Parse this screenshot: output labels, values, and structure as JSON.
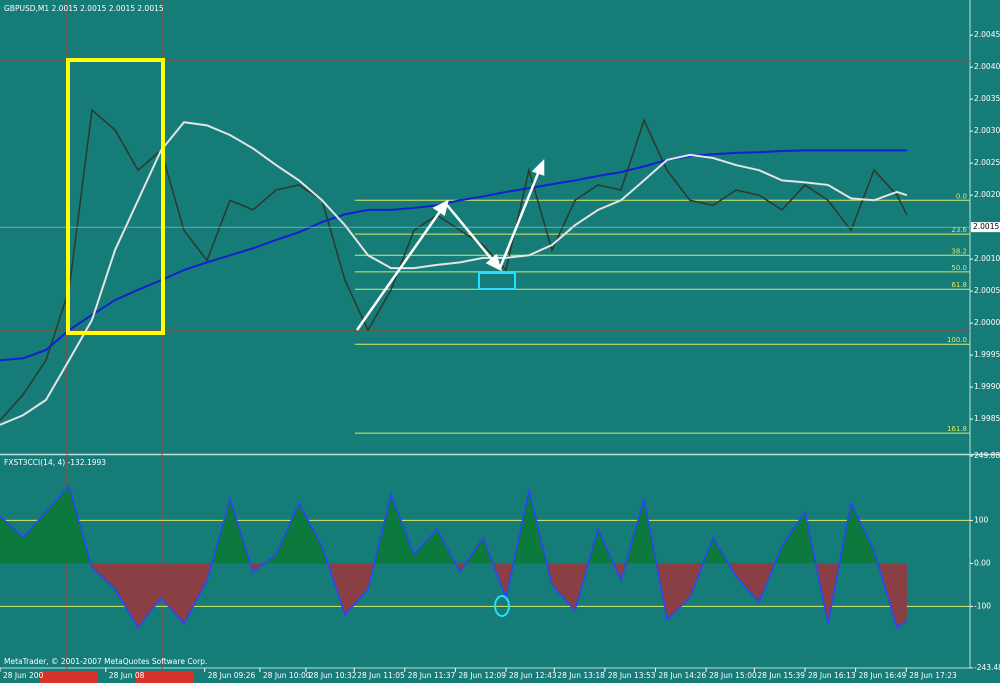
{
  "chart_data": [
    {
      "type": "line",
      "title": "GBPUSD,M1  2.0015 2.0015 2.0015 2.0015",
      "x": [
        0,
        1,
        2,
        3,
        4,
        5,
        6,
        7,
        8,
        9,
        10,
        11,
        12,
        13,
        14,
        15,
        16,
        17,
        18,
        19,
        20,
        21,
        22,
        23,
        24,
        25,
        26,
        27,
        28,
        29,
        30,
        31,
        32,
        33,
        34,
        35,
        36,
        37,
        38,
        39,
        39.43
      ],
      "xlim": [
        0,
        42.174
      ],
      "ylim": [
        1.99797,
        2.00505
      ],
      "yticks": [
        2.0045,
        {
          "value": 2.004,
          "label": "2.0040"
        },
        2.0035,
        {
          "value": 2.003,
          "label": "2.0030"
        },
        2.0025,
        {
          "value": 2.002,
          "label": "2.0020"
        },
        {
          "value": 2.001,
          "label": "2.0010"
        },
        2.0005,
        {
          "value": 2,
          "label": "2.0000"
        },
        1.9995,
        {
          "value": 1.999,
          "label": "1.9990"
        },
        1.9985
      ],
      "current_price": 2.0015,
      "fib_color": "#d8e86a",
      "fib_start": 15.43,
      "fib_levels": [
        {
          "label": "0.0",
          "value": 2.00192
        },
        {
          "label": "23.6",
          "value": 2.00139
        },
        {
          "label": "38.2",
          "value": 2.00106
        },
        {
          "label": "50.0",
          "value": 2.0008
        },
        {
          "label": "61.8",
          "value": 2.00053
        },
        {
          "label": "100.0",
          "value": 1.99967
        },
        {
          "label": "161.8",
          "value": 1.99828
        }
      ],
      "series": [
        {
          "color": "#2a3a2a",
          "values": [
            1.99848,
            1.99888,
            1.99942,
            2.00052,
            2.00333,
            2.00302,
            2.00239,
            2.0027,
            2.00145,
            2.00098,
            2.00192,
            2.00177,
            2.00208,
            2.00216,
            2.00192,
            2.00067,
            1.99989,
            2.00052,
            2.00145,
            2.00169,
            2.00145,
            2.00122,
            2.00083,
            2.00239,
            2.00114,
            2.00192,
            2.00216,
            2.00208,
            2.00317,
            2.00239,
            2.00192,
            2.00184,
            2.00208,
            2.002,
            2.00177,
            2.00216,
            2.00192,
            2.00145,
            2.00239,
            2.002,
            2.00169
          ]
        },
        {
          "color": "#1020d0",
          "values": [
            1.99942,
            1.99945,
            1.99958,
            1.99989,
            2.00013,
            2.00036,
            2.00052,
            2.00067,
            2.00083,
            2.00095,
            2.00106,
            2.00117,
            2.0013,
            2.00142,
            2.00158,
            2.0017,
            2.00177,
            2.00177,
            2.0018,
            2.00184,
            2.00192,
            2.00198,
            2.00205,
            2.00211,
            2.00217,
            2.00223,
            2.0023,
            2.00236,
            2.00245,
            2.00255,
            2.00261,
            2.00264,
            2.00266,
            2.00267,
            2.00269,
            2.0027,
            2.0027,
            2.0027,
            2.0027,
            2.0027,
            2.0027
          ]
        },
        {
          "color": "#e4e4e4",
          "values": [
            1.99841,
            1.99856,
            1.9988,
            1.99942,
            2.00005,
            2.00114,
            2.00192,
            2.0027,
            2.00314,
            2.00309,
            2.00294,
            2.00273,
            2.00247,
            2.00223,
            2.00192,
            2.00153,
            2.00106,
            2.00086,
            2.00086,
            2.00091,
            2.00095,
            2.00102,
            2.00102,
            2.00106,
            2.00122,
            2.00153,
            2.00177,
            2.00192,
            2.00223,
            2.00255,
            2.00263,
            2.00258,
            2.00247,
            2.00239,
            2.00223,
            2.0022,
            2.00216,
            2.00195,
            2.00192,
            2.00205,
            2.002
          ]
        }
      ]
    },
    {
      "type": "area",
      "title": "FXST3CCI(14, 4) -132.1993",
      "x": [
        0,
        1,
        2,
        3,
        4,
        5,
        6,
        7,
        8,
        9,
        10,
        11,
        12,
        13,
        14,
        15,
        16,
        17,
        18,
        19,
        20,
        21,
        22,
        23,
        24,
        25,
        26,
        27,
        28,
        29,
        30,
        31,
        32,
        33,
        34,
        35,
        36,
        37,
        38,
        39,
        39.43
      ],
      "xlim": [
        0,
        42.174
      ],
      "xticks": [
        {
          "value": 0,
          "label": "28 Jun 200"
        },
        {
          "value": 4.6,
          "label": "28 Jun 08"
        },
        {
          "value": 8.9,
          "label": "28 Jun 09:26"
        },
        {
          "value": 11.3,
          "label": "28 Jun 10:00"
        },
        {
          "value": 13.3,
          "label": "28 Jun 10:32"
        },
        {
          "value": 15.4,
          "label": "28 Jun 11:05"
        },
        {
          "value": 17.6,
          "label": "28 Jun 11:37"
        },
        {
          "value": 19.8,
          "label": "28 Jun 12:09"
        },
        {
          "value": 22,
          "label": "28 Jun 12:43"
        },
        {
          "value": 24.1,
          "label": "28 Jun 13:18"
        },
        {
          "value": 26.3,
          "label": "28 Jun 13:53"
        },
        {
          "value": 28.5,
          "label": "28 Jun 14:26"
        },
        {
          "value": 30.7,
          "label": "28 Jun 15:00"
        },
        {
          "value": 32.8,
          "label": "28 Jun 15:39"
        },
        {
          "value": 35,
          "label": "28 Jun 16:13"
        },
        {
          "value": 37.2,
          "label": "28 Jun 16:49"
        },
        {
          "value": 39.4,
          "label": "28 Jun 17:23"
        }
      ],
      "ylim": [
        -243.482,
        249.886
      ],
      "yticks": [
        249.886,
        100,
        {
          "value": 0,
          "label": "0.00"
        },
        -100,
        -243.482
      ],
      "level_lines": [
        100,
        -100
      ],
      "level_color": "#d8e86a",
      "positive_color": "#0b7a3c",
      "negative_color": "#8a3f45",
      "line_color": "#2a44ff",
      "values": [
        110,
        60,
        120,
        180,
        -10,
        -60,
        -150,
        -80,
        -140,
        -40,
        150,
        -20,
        20,
        140,
        40,
        -120,
        -60,
        160,
        20,
        80,
        -20,
        60,
        -80,
        170,
        -50,
        -110,
        80,
        -40,
        150,
        -130,
        -80,
        60,
        -30,
        -90,
        40,
        120,
        -140,
        140,
        30,
        -150,
        -132.1993
      ]
    }
  ],
  "footer": "MetaTrader, © 2001-2007 MetaQuotes Software Corp."
}
